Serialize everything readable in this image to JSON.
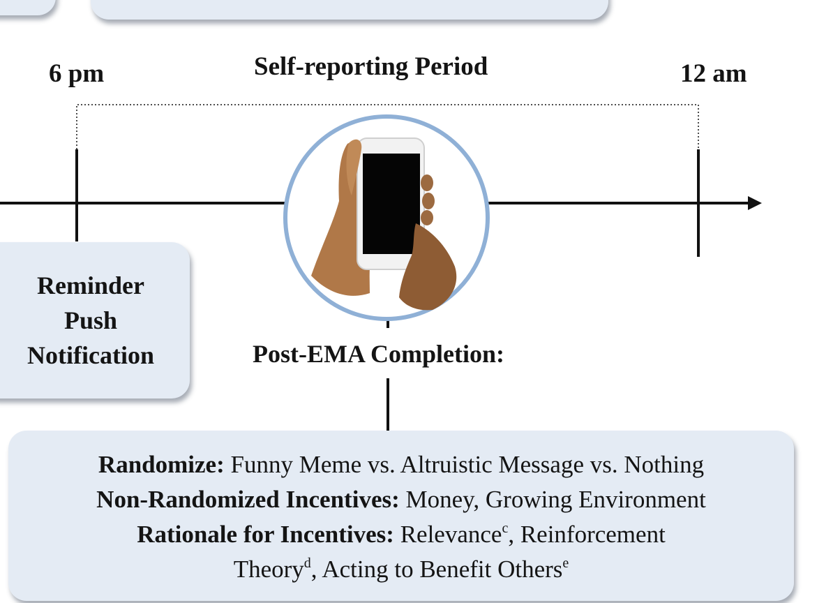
{
  "timeline": {
    "start_label": "6 pm",
    "end_label": "12 am",
    "period_label": "Self-reporting Period"
  },
  "reminder": {
    "lines": [
      "Reminder",
      "Push",
      "Notification"
    ]
  },
  "post_ema": {
    "title": "Post-EMA Completion:",
    "randomize_label": "Randomize:",
    "randomize_text": " Funny Meme vs. Altruistic Message vs. Nothing",
    "non_random_label": "Non-Randomized Incentives:",
    "non_random_text": " Money, Growing Environment",
    "rationale_label": "Rationale for Incentives:",
    "rationale_text_1": " Relevance",
    "rationale_sup_1": "c",
    "rationale_text_2": ", Reinforcement",
    "rationale_text_3": "Theory",
    "rationale_sup_2": "d",
    "rationale_text_4": ", Acting to Benefit Others",
    "rationale_sup_3": "e"
  },
  "colors": {
    "box_fill": "#e4ebf4",
    "circle_stroke": "#8fb0d6",
    "line": "#111111"
  },
  "icons": {
    "phone": "smartphone-in-hands-icon"
  }
}
